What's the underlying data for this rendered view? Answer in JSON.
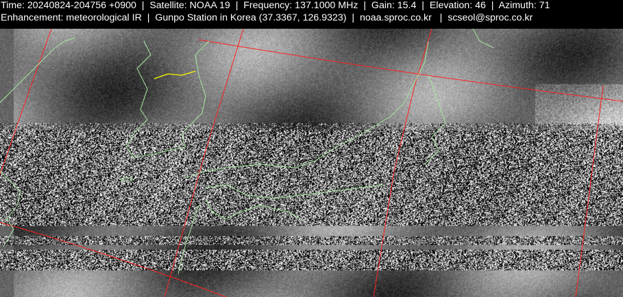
{
  "header": {
    "line1": "Time: 20240824-204756 +0900  |  Satellite: NOAA 19  |  Frequency: 137.1000 MHz  |  Gain: 15.4  |  Elevation: 46  |  Azimuth: 71",
    "line2": "Enhancement: meteorological IR  |  Gunpo Station in Korea (37.3367, 126.9323)  |  noaa.sproc.co.kr   |  scseol@sproc.co.kr"
  },
  "image": {
    "type": "satellite-ir-image",
    "grid_color": "#ff2020",
    "coastline_color": "#a8e6a0",
    "border_color": "#ffff00"
  }
}
